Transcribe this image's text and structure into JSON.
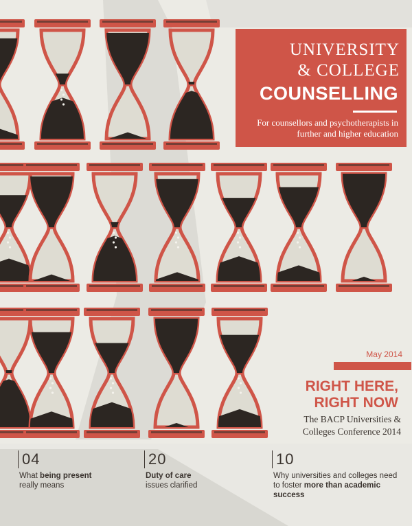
{
  "masthead": {
    "line1": "UNIVERSITY",
    "line2": "& COLLEGE",
    "line3": "COUNSELLING",
    "tagline": "For counsellors and psychotherapists in further and higher education"
  },
  "issue_date": "May 2014",
  "cover_story": {
    "headline_line1": "RIGHT HERE,",
    "headline_line2": "RIGHT NOW",
    "subhead_line1": "The BACP Universities &",
    "subhead_line2": "Colleges Conference 2014"
  },
  "teasers": [
    {
      "number": "04",
      "text1": "What ",
      "bold1": "being present",
      "text2": "really means",
      "bold2": ""
    },
    {
      "number": "20",
      "text1": "",
      "bold1": "Duty of care",
      "text2": "issues clarified",
      "bold2": ""
    },
    {
      "number": "10",
      "text1": "Why universities and colleges need to foster ",
      "bold1": "",
      "text2": "",
      "bold2": "more than academic success"
    }
  ],
  "colors": {
    "accent": "#cf5548",
    "sand": "#2c2622",
    "paper": "#ecebe5",
    "ink": "#3a332e"
  },
  "illustration": {
    "subject": "hourglass-icon",
    "rows": [
      {
        "count": 4,
        "sand_top_fractions": [
          0.85,
          0.2,
          0.95,
          0.05
        ]
      },
      {
        "count": 7,
        "sand_top_fractions": [
          0.6,
          0.95,
          0.1,
          0.9,
          0.55,
          0.75,
          1.0
        ]
      },
      {
        "count": 5,
        "sand_top_fractions": [
          0.05,
          0.75,
          0.55,
          1.0,
          0.7
        ]
      }
    ]
  }
}
